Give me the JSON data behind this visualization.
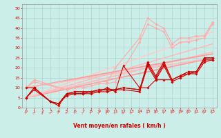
{
  "xlabel": "Vent moyen/en rafales ( km/h )",
  "bg_color": "#cceee8",
  "grid_color": "#aacccc",
  "xlim": [
    -0.5,
    23.5
  ],
  "ylim": [
    0,
    52
  ],
  "yticks": [
    0,
    5,
    10,
    15,
    20,
    25,
    30,
    35,
    40,
    45,
    50
  ],
  "xticks": [
    0,
    1,
    2,
    3,
    4,
    5,
    6,
    7,
    8,
    9,
    10,
    11,
    12,
    13,
    14,
    15,
    16,
    17,
    18,
    19,
    20,
    21,
    22,
    23
  ],
  "series": [
    {
      "x": [
        0,
        1,
        3,
        4,
        5,
        6,
        7,
        8,
        9,
        10,
        11,
        12,
        14,
        15,
        16,
        17,
        18,
        19,
        20,
        21,
        22,
        23
      ],
      "y": [
        10,
        10,
        3,
        1,
        7,
        7,
        7,
        8,
        8,
        10,
        8,
        21,
        10,
        10,
        14,
        14,
        14,
        16,
        18,
        18,
        25,
        25
      ],
      "color": "#cc0000",
      "lw": 0.8,
      "marker": "D",
      "ms": 1.8,
      "zorder": 5
    },
    {
      "x": [
        0,
        1,
        3,
        4,
        5,
        6,
        7,
        8,
        9,
        10,
        11,
        12,
        14,
        15,
        16,
        17,
        18,
        19,
        20,
        21,
        22,
        23
      ],
      "y": [
        5,
        10,
        3,
        2,
        7,
        8,
        8,
        8,
        9,
        9,
        9,
        10,
        9,
        23,
        16,
        23,
        14,
        16,
        18,
        18,
        25,
        25
      ],
      "color": "#cc0000",
      "lw": 0.8,
      "marker": "D",
      "ms": 1.8,
      "zorder": 5
    },
    {
      "x": [
        0,
        1,
        3,
        4,
        5,
        6,
        7,
        8,
        9,
        10,
        11,
        12,
        14,
        15,
        16,
        17,
        18,
        19,
        20,
        21,
        22,
        23
      ],
      "y": [
        5,
        10,
        3,
        2,
        7,
        8,
        8,
        8,
        9,
        9,
        9,
        10,
        9,
        22,
        15,
        22,
        14,
        16,
        17,
        18,
        24,
        24
      ],
      "color": "#cc0000",
      "lw": 0.8,
      "marker": "D",
      "ms": 1.8,
      "zorder": 5
    },
    {
      "x": [
        0,
        1,
        3,
        4,
        5,
        6,
        7,
        8,
        9,
        10,
        11,
        12,
        14,
        15,
        16,
        17,
        18,
        19,
        20,
        21,
        22,
        23
      ],
      "y": [
        5,
        9,
        3,
        2,
        6,
        7,
        7,
        7,
        8,
        8,
        9,
        9,
        8,
        21,
        14,
        21,
        13,
        15,
        17,
        17,
        23,
        24
      ],
      "color": "#cc0000",
      "lw": 0.8,
      "marker": "D",
      "ms": 1.8,
      "zorder": 5
    },
    {
      "x": [
        0,
        1,
        5,
        6,
        7,
        8,
        9,
        10,
        11,
        14,
        15,
        16,
        17,
        18,
        19,
        20,
        21,
        22,
        23
      ],
      "y": [
        10,
        14,
        9,
        10,
        11,
        12,
        13,
        13,
        20,
        35,
        45,
        42,
        40,
        32,
        35,
        35,
        36,
        36,
        43
      ],
      "color": "#ffaaaa",
      "lw": 0.8,
      "marker": "D",
      "ms": 1.8,
      "zorder": 4
    },
    {
      "x": [
        0,
        1,
        5,
        6,
        7,
        8,
        9,
        10,
        11,
        14,
        15,
        16,
        17,
        18,
        19,
        20,
        21,
        22,
        23
      ],
      "y": [
        10,
        13,
        9,
        10,
        10,
        11,
        12,
        12,
        13,
        33,
        42,
        40,
        38,
        30,
        33,
        33,
        34,
        35,
        42
      ],
      "color": "#ffaaaa",
      "lw": 0.8,
      "marker": "D",
      "ms": 1.8,
      "zorder": 4
    },
    {
      "x": [
        0,
        23
      ],
      "y": [
        5,
        25
      ],
      "color": "#ff9999",
      "lw": 1.2,
      "marker": null,
      "ms": 0,
      "zorder": 3
    },
    {
      "x": [
        0,
        23
      ],
      "y": [
        5,
        28
      ],
      "color": "#ffbbbb",
      "lw": 1.2,
      "marker": null,
      "ms": 0,
      "zorder": 3
    },
    {
      "x": [
        0,
        23
      ],
      "y": [
        5,
        32
      ],
      "color": "#ffbbbb",
      "lw": 1.2,
      "marker": null,
      "ms": 0,
      "zorder": 3
    },
    {
      "x": [
        0,
        23
      ],
      "y": [
        5,
        38
      ],
      "color": "#ffcccc",
      "lw": 1.2,
      "marker": null,
      "ms": 0,
      "zorder": 3
    },
    {
      "x": [
        0,
        23
      ],
      "y": [
        10,
        27
      ],
      "color": "#ff9999",
      "lw": 1.2,
      "marker": null,
      "ms": 0,
      "zorder": 3
    },
    {
      "x": [
        0,
        23
      ],
      "y": [
        10,
        25
      ],
      "color": "#ffbbbb",
      "lw": 1.2,
      "marker": null,
      "ms": 0,
      "zorder": 3
    }
  ],
  "arrow_color": "#ff7777",
  "arrow_angles": [
    45,
    55,
    80,
    50,
    35,
    45,
    45,
    50,
    50,
    50,
    55,
    60,
    60,
    55,
    40,
    30,
    30,
    28,
    25,
    22,
    20,
    20,
    18,
    18
  ]
}
